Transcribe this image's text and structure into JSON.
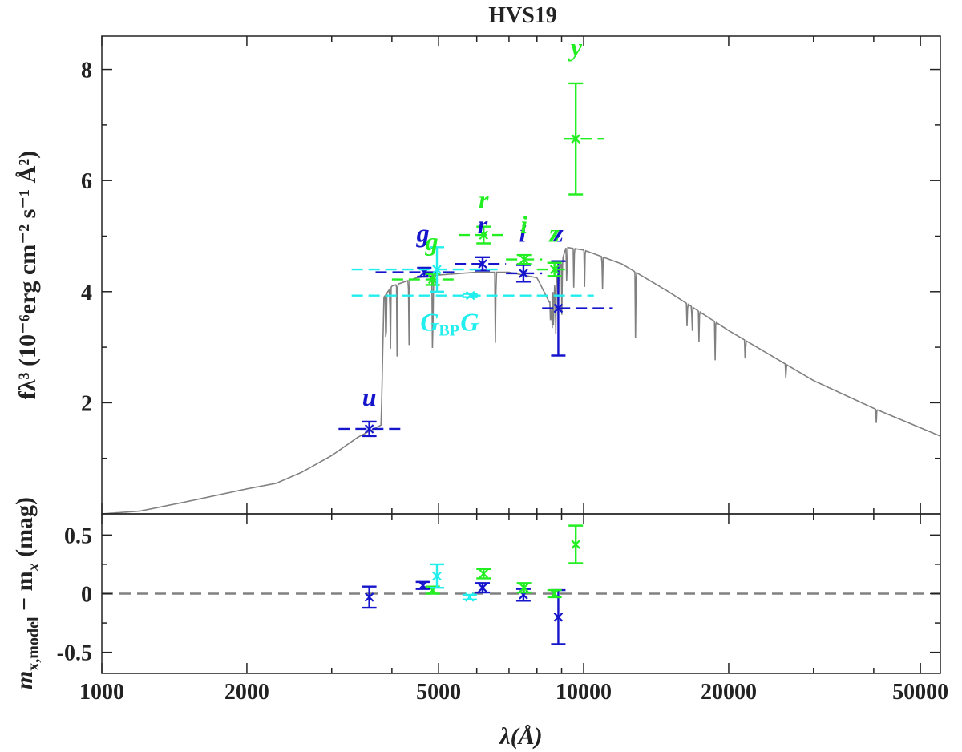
{
  "chart_data": {
    "type": "scatter",
    "title": "HVS19",
    "xlabel": "λ(Å)",
    "xscale": "log",
    "xlim": [
      1000,
      55000
    ],
    "xticks": [
      "1000",
      "2000",
      "5000",
      "10000",
      "20000",
      "50000"
    ],
    "xtick_values": [
      1000,
      2000,
      5000,
      10000,
      20000,
      50000
    ],
    "top_panel": {
      "ylabel": "fλ³ (10⁻⁶erg cm⁻² s⁻¹ Å²)",
      "ylim": [
        0,
        8.6
      ],
      "yticks": [
        "2",
        "4",
        "6",
        "8"
      ],
      "ytick_values": [
        2,
        4,
        6,
        8
      ],
      "model_spectrum": {
        "color": "#808080",
        "x": [
          1000,
          1200,
          1500,
          2000,
          2300,
          2600,
          3000,
          3400,
          3650,
          3800,
          3850,
          4000,
          4500,
          5000,
          6000,
          7000,
          8000,
          8500,
          8900,
          9200,
          10000,
          12000,
          15000,
          20000,
          30000,
          40000,
          55000
        ],
        "y": [
          0.0,
          0.05,
          0.22,
          0.45,
          0.55,
          0.75,
          1.05,
          1.38,
          1.52,
          1.6,
          3.9,
          4.1,
          4.25,
          4.3,
          4.35,
          4.35,
          4.25,
          3.8,
          4.4,
          4.8,
          4.75,
          4.5,
          4.0,
          3.3,
          2.4,
          1.9,
          1.4
        ]
      },
      "absorption_lines": [
        {
          "x": 3889,
          "depth": 1.6
        },
        {
          "x": 3970,
          "depth": 1.5
        },
        {
          "x": 4101,
          "depth": 1.3
        },
        {
          "x": 4340,
          "depth": 1.3
        },
        {
          "x": 4861,
          "depth": 2.3
        },
        {
          "x": 6563,
          "depth": 1.7
        },
        {
          "x": 8545,
          "depth": 0.8
        },
        {
          "x": 8598,
          "depth": 0.9
        },
        {
          "x": 8665,
          "depth": 1.0
        },
        {
          "x": 8750,
          "depth": 1.1
        },
        {
          "x": 8863,
          "depth": 1.2
        },
        {
          "x": 9015,
          "depth": 1.1
        },
        {
          "x": 9229,
          "depth": 1.0
        },
        {
          "x": 9546,
          "depth": 0.8
        },
        {
          "x": 10049,
          "depth": 0.7
        },
        {
          "x": 10938,
          "depth": 0.7
        },
        {
          "x": 12818,
          "depth": 1.3
        },
        {
          "x": 16400,
          "depth": 0.5
        },
        {
          "x": 16800,
          "depth": 0.6
        },
        {
          "x": 17362,
          "depth": 0.6
        },
        {
          "x": 18751,
          "depth": 0.7
        },
        {
          "x": 21655,
          "depth": 0.5
        },
        {
          "x": 26300,
          "depth": 0.3
        },
        {
          "x": 40500,
          "depth": 0.25
        }
      ],
      "photometry": [
        {
          "band": "u",
          "color": "#1515cc",
          "x": 3590,
          "y": 1.53,
          "yerr": 0.13,
          "xlo": 3100,
          "xhi": 4200,
          "label_x": 3590,
          "label_y": 1.95
        },
        {
          "band": "g",
          "color": "#1515cc",
          "x": 4670,
          "y": 4.35,
          "yerr": 0.08,
          "xlo": 3700,
          "xhi": 5500,
          "label_x": 4640,
          "label_y": 4.9
        },
        {
          "band": "r",
          "color": "#1515cc",
          "x": 6170,
          "y": 4.5,
          "yerr": 0.12,
          "xlo": 5400,
          "xhi": 6900,
          "label_x": 6170,
          "label_y": 5.05
        },
        {
          "band": "i",
          "color": "#1515cc",
          "x": 7500,
          "y": 4.33,
          "yerr": 0.15,
          "xlo": 6900,
          "xhi": 8200,
          "label_x": 7470,
          "label_y": 4.9
        },
        {
          "band": "z",
          "color": "#1515cc",
          "x": 8860,
          "y": 3.7,
          "yerr": 0.85,
          "xlo": 8200,
          "xhi": 11500,
          "label_x": 8860,
          "label_y": 4.9
        },
        {
          "band": "g",
          "color": "#22ee22",
          "x": 4860,
          "y": 4.22,
          "yerr": 0.1,
          "xlo": 4000,
          "xhi": 5500,
          "label_x": 4840,
          "label_y": 4.75
        },
        {
          "band": "r",
          "color": "#22ee22",
          "x": 6200,
          "y": 5.02,
          "yerr": 0.15,
          "xlo": 5500,
          "xhi": 6900,
          "label_x": 6200,
          "label_y": 5.5
        },
        {
          "band": "i",
          "color": "#22ee22",
          "x": 7520,
          "y": 4.58,
          "yerr": 0.08,
          "xlo": 6900,
          "xhi": 8200,
          "label_x": 7520,
          "label_y": 5.05
        },
        {
          "band": "z",
          "color": "#22ee22",
          "x": 8700,
          "y": 4.4,
          "yerr": 0.12,
          "xlo": 8000,
          "xhi": 9300,
          "label_x": 8690,
          "label_y": 4.9
        },
        {
          "band": "y",
          "color": "#22ee22",
          "x": 9630,
          "y": 6.75,
          "yerr": 1.0,
          "xlo": 9100,
          "xhi": 11000,
          "label_x": 9660,
          "label_y": 8.25
        },
        {
          "band": "GBP",
          "color": "#22eeee",
          "x": 4960,
          "y": 4.4,
          "yerr": 0.4,
          "xlo": 3300,
          "xhi": 6700,
          "label_x": 5030,
          "label_y": 3.3
        },
        {
          "band": "G",
          "color": "#22eeee",
          "x": 5820,
          "y": 3.93,
          "yerr": 0.03,
          "xlo": 3300,
          "xhi": 10500,
          "label_x": 5800,
          "label_y": 3.3
        }
      ],
      "band_labels": [
        "u",
        "g",
        "r",
        "i",
        "z",
        "g",
        "r",
        "i",
        "z",
        "y"
      ],
      "gaia_labels": {
        "gbp_main": "G",
        "gbp_sub": "BP",
        "g": "G"
      }
    },
    "bottom_panel": {
      "ylabel_main": "m",
      "ylabel_sub": "x,model",
      "ylabel_mid": " − m",
      "ylabel_sub2": "x",
      "ylabel_end": " (mag)",
      "ylim": [
        -0.68,
        0.68
      ],
      "yticks": [
        "-0.5",
        "0",
        "0.5"
      ],
      "ytick_values": [
        -0.5,
        0,
        0.5
      ],
      "zero_line": 0,
      "residuals": [
        {
          "band": "u",
          "color": "#1515cc",
          "x": 3590,
          "y": -0.03,
          "yerr": 0.09
        },
        {
          "band": "g",
          "color": "#1515cc",
          "x": 4640,
          "y": 0.07,
          "yerr": 0.03
        },
        {
          "band": "r",
          "color": "#1515cc",
          "x": 6170,
          "y": 0.05,
          "yerr": 0.04
        },
        {
          "band": "i",
          "color": "#1515cc",
          "x": 7500,
          "y": -0.01,
          "yerr": 0.05
        },
        {
          "band": "z",
          "color": "#1515cc",
          "x": 8860,
          "y": -0.2,
          "yerr": 0.23
        },
        {
          "band": "g",
          "color": "#22ee22",
          "x": 4860,
          "y": 0.03,
          "yerr": 0.03
        },
        {
          "band": "r",
          "color": "#22ee22",
          "x": 6200,
          "y": 0.17,
          "yerr": 0.04
        },
        {
          "band": "i",
          "color": "#22ee22",
          "x": 7520,
          "y": 0.05,
          "yerr": 0.04
        },
        {
          "band": "z",
          "color": "#22ee22",
          "x": 8700,
          "y": 0.0,
          "yerr": 0.03
        },
        {
          "band": "y",
          "color": "#22ee22",
          "x": 9630,
          "y": 0.42,
          "yerr": 0.16
        },
        {
          "band": "GBP",
          "color": "#22eeee",
          "x": 4960,
          "y": 0.15,
          "yerr": 0.1
        },
        {
          "band": "G",
          "color": "#22eeee",
          "x": 5800,
          "y": -0.03,
          "yerr": 0.02
        }
      ]
    }
  }
}
